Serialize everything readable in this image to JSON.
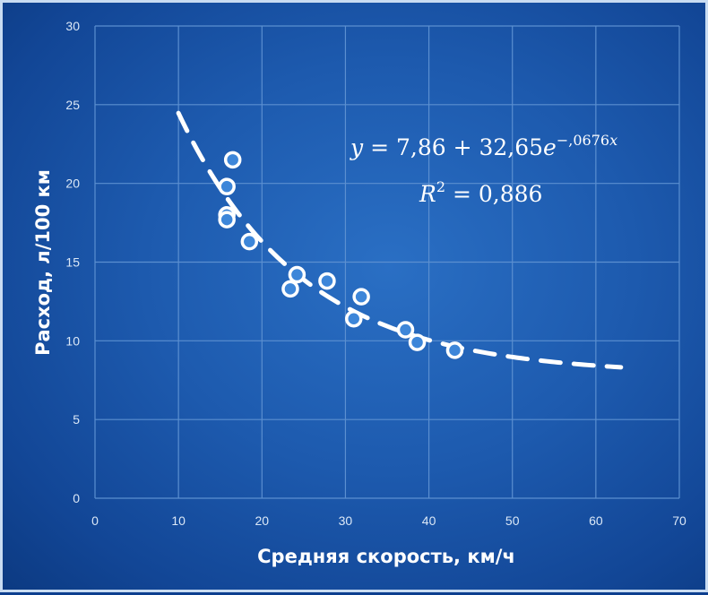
{
  "chart_data": {
    "type": "scatter",
    "title": "",
    "xlabel": "Средняя скорость, км/ч",
    "ylabel": "Расход, л/100 км",
    "xlim": [
      0,
      70
    ],
    "ylim": [
      0,
      30
    ],
    "x_ticks": [
      "0",
      "10",
      "20",
      "30",
      "40",
      "50",
      "60",
      "70"
    ],
    "y_ticks": [
      "0",
      "5",
      "10",
      "15",
      "20",
      "25",
      "30"
    ],
    "grid": true,
    "legend": "none",
    "points": [
      {
        "x": 16.5,
        "y": 21.5
      },
      {
        "x": 15.8,
        "y": 19.8
      },
      {
        "x": 15.8,
        "y": 18.0
      },
      {
        "x": 15.8,
        "y": 17.7
      },
      {
        "x": 18.5,
        "y": 16.3
      },
      {
        "x": 24.2,
        "y": 14.2
      },
      {
        "x": 23.4,
        "y": 13.3
      },
      {
        "x": 27.8,
        "y": 13.8
      },
      {
        "x": 31.9,
        "y": 12.8
      },
      {
        "x": 31.0,
        "y": 11.4
      },
      {
        "x": 37.2,
        "y": 10.7
      },
      {
        "x": 38.6,
        "y": 9.9
      },
      {
        "x": 43.1,
        "y": 9.4
      }
    ],
    "trendline": {
      "type": "exponential",
      "a": 7.86,
      "b": 32.65,
      "k": -0.0676,
      "x_range": [
        10,
        63
      ],
      "style": "dashed",
      "equation_parts": {
        "y": "y",
        "lhs": " = 7,86 + 32,65",
        "e": "e",
        "exponent": "−,0676",
        "x": "x"
      },
      "r2_parts": {
        "r": "R",
        "sup": "2",
        "rest": " = 0,886"
      }
    },
    "colors": {
      "point_fill": "#3d86d9",
      "point_stroke": "#ffffff",
      "grid": "#5b8fd0",
      "trend": "#ffffff"
    }
  }
}
